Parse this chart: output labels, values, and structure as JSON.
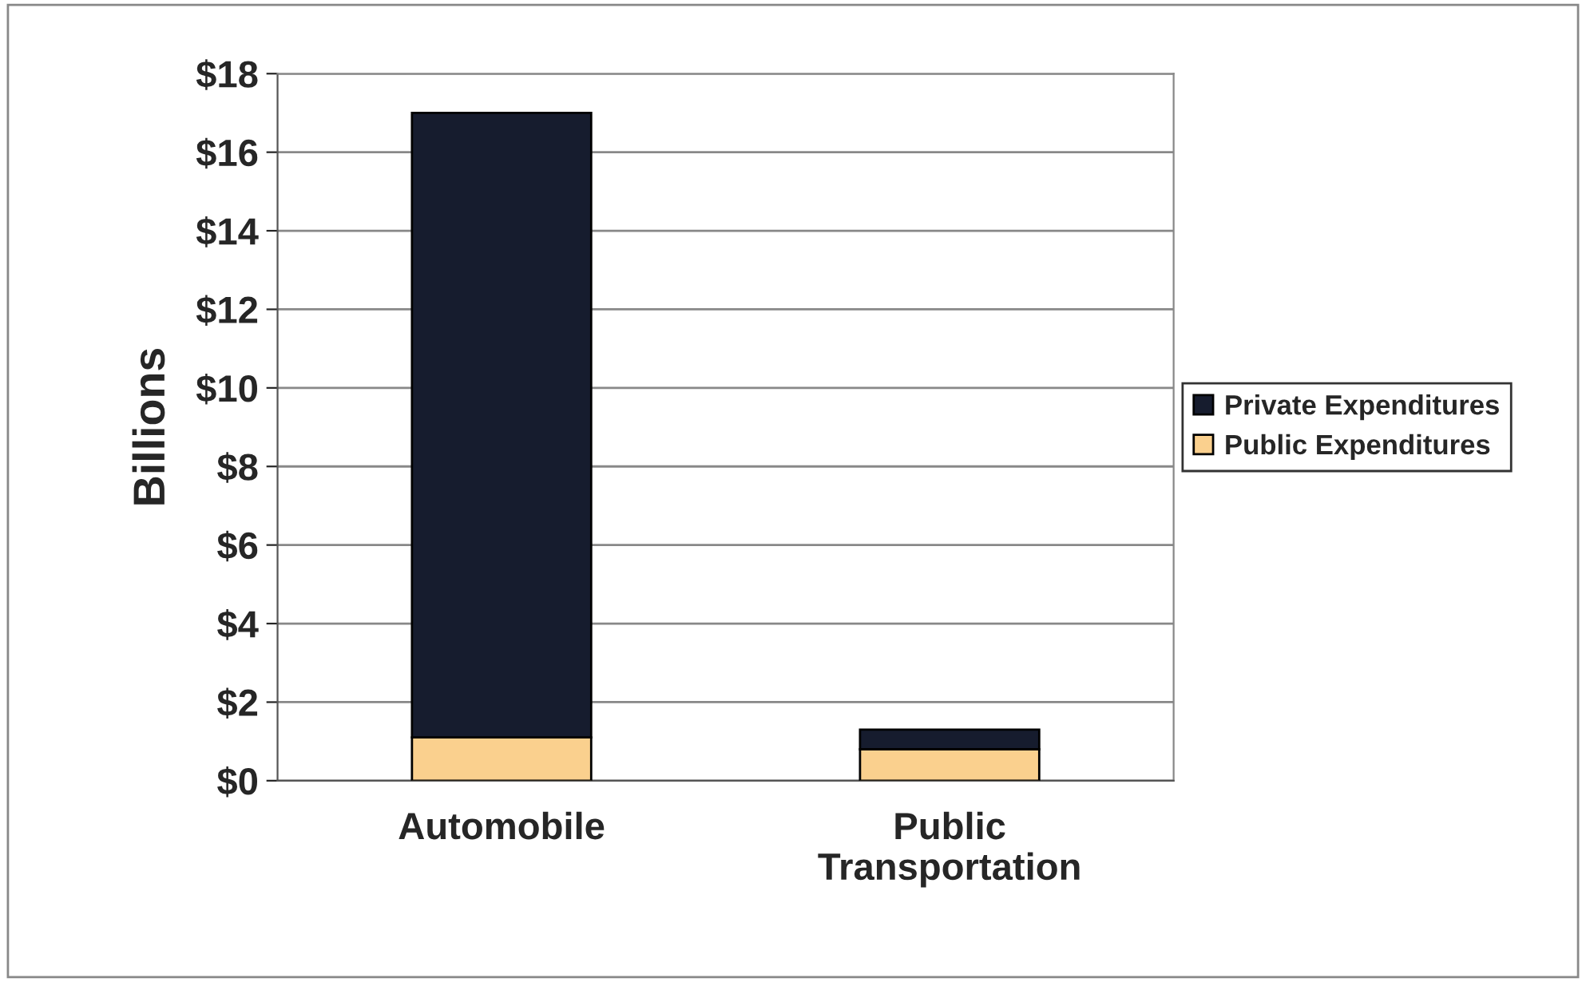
{
  "chart_data": {
    "type": "bar",
    "stacked": true,
    "ylabel": "Billions",
    "categories": [
      "Automobile",
      "Public\nTransportation"
    ],
    "series": [
      {
        "name": "Public Expenditures",
        "color": "#fad08e",
        "values": [
          1.1,
          0.8
        ]
      },
      {
        "name": "Private Expenditures",
        "color": "#161c2e",
        "values": [
          15.9,
          0.5
        ]
      }
    ],
    "ylim": [
      0,
      18
    ],
    "yticks": [
      {
        "value": 0,
        "label": "$0"
      },
      {
        "value": 2,
        "label": "$2"
      },
      {
        "value": 4,
        "label": "$4"
      },
      {
        "value": 6,
        "label": "$6"
      },
      {
        "value": 8,
        "label": "$8"
      },
      {
        "value": 10,
        "label": "$10"
      },
      {
        "value": 12,
        "label": "$12"
      },
      {
        "value": 14,
        "label": "$14"
      },
      {
        "value": 16,
        "label": "$16"
      },
      {
        "value": 18,
        "label": "$18"
      }
    ],
    "grid": "y",
    "legend": "right"
  }
}
